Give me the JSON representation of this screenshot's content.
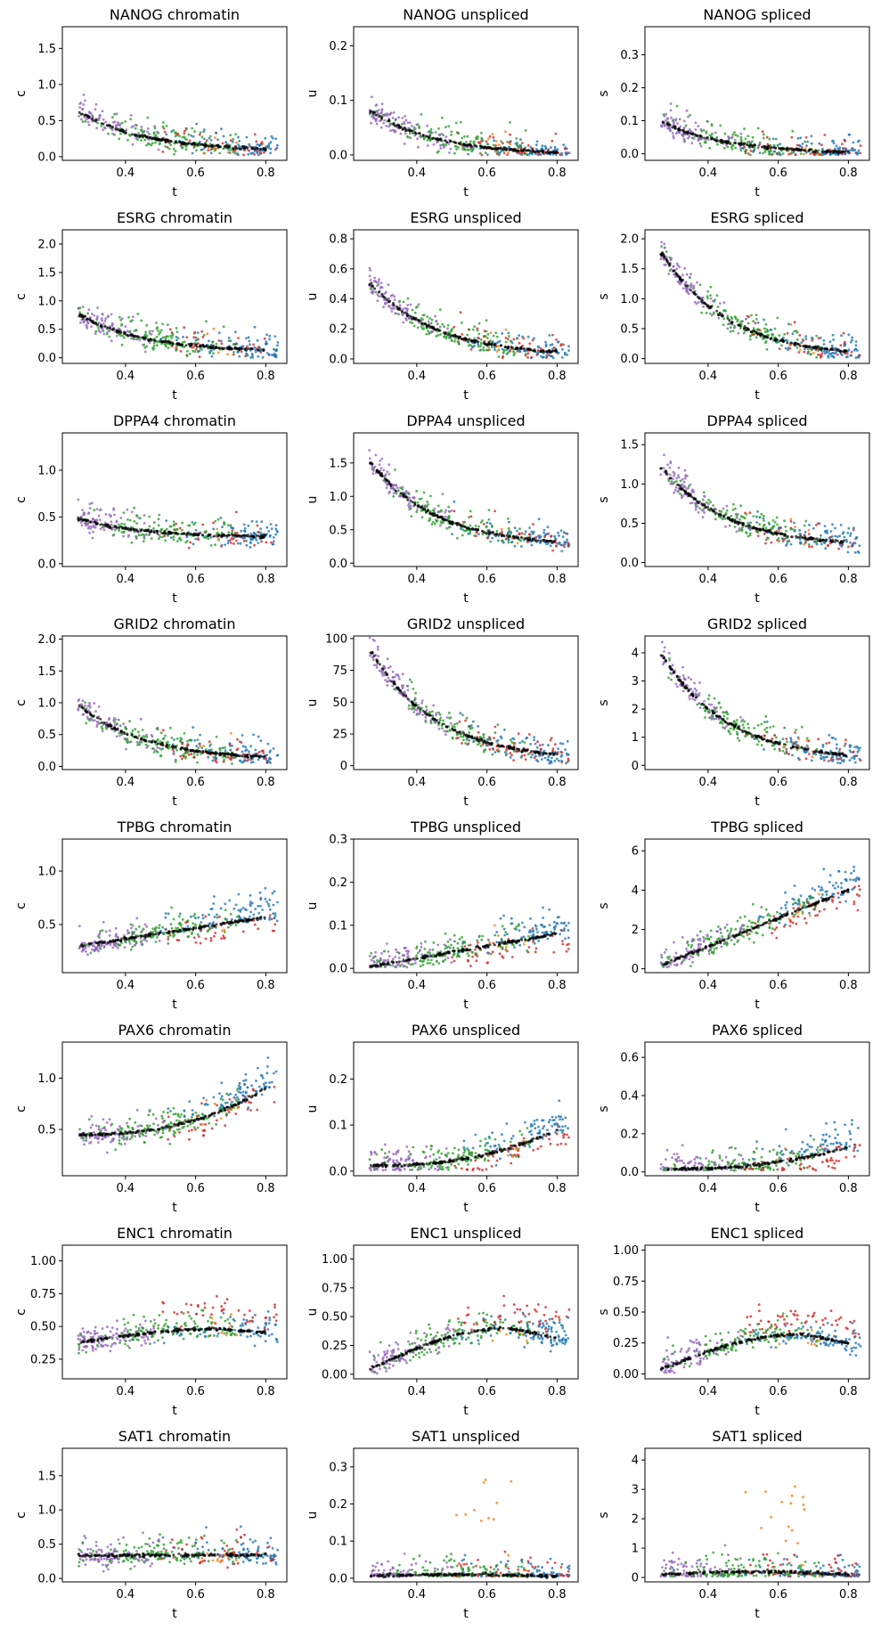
{
  "figure": {
    "x_label": "t",
    "x_range": [
      0.22,
      0.86
    ],
    "x_ticks": [
      0.4,
      0.6,
      0.8
    ],
    "column_kinds": [
      "chromatin",
      "unspliced",
      "spliced"
    ],
    "column_ylabels": [
      "c",
      "u",
      "s"
    ],
    "cluster_colors": {
      "purple": "#9467bd",
      "green": "#2ca02c",
      "orange": "#ff7f0e",
      "red": "#d62728",
      "blue": "#1f77b4",
      "fit": "#000000"
    }
  },
  "chart_data": [
    {
      "type": "scatter",
      "gene": "NANOG",
      "kind": "chromatin",
      "title": "NANOG chromatin",
      "xlabel": "t",
      "ylabel": "c",
      "ylim": [
        -0.05,
        1.8
      ],
      "yticks": [
        0.0,
        0.5,
        1.0,
        1.5
      ],
      "ytick_labels": [
        "0.0",
        "0.5",
        "1.0",
        "1.5"
      ],
      "trend": "decrease",
      "fit": [
        0.62,
        0.08
      ]
    },
    {
      "type": "scatter",
      "gene": "NANOG",
      "kind": "unspliced",
      "title": "NANOG unspliced",
      "xlabel": "t",
      "ylabel": "u",
      "ylim": [
        -0.01,
        0.235
      ],
      "yticks": [
        0.0,
        0.1,
        0.2
      ],
      "ytick_labels": [
        "0.0",
        "0.1",
        "0.2"
      ],
      "trend": "decrease",
      "fit": [
        0.08,
        0.0
      ]
    },
    {
      "type": "scatter",
      "gene": "NANOG",
      "kind": "spliced",
      "title": "NANOG spliced",
      "xlabel": "t",
      "ylabel": "s",
      "ylim": [
        -0.02,
        0.385
      ],
      "yticks": [
        0.0,
        0.1,
        0.2,
        0.3
      ],
      "ytick_labels": [
        "0.0",
        "0.1",
        "0.2",
        "0.3"
      ],
      "trend": "decrease",
      "fit": [
        0.095,
        0.0
      ]
    },
    {
      "type": "scatter",
      "gene": "ESRG",
      "kind": "chromatin",
      "title": "ESRG chromatin",
      "xlabel": "t",
      "ylabel": "c",
      "ylim": [
        -0.1,
        2.25
      ],
      "yticks": [
        0.0,
        0.5,
        1.0,
        1.5,
        2.0
      ],
      "ytick_labels": [
        "0.0",
        "0.5",
        "1.0",
        "1.5",
        "2.0"
      ],
      "trend": "decrease",
      "fit": [
        0.75,
        0.1
      ]
    },
    {
      "type": "scatter",
      "gene": "ESRG",
      "kind": "unspliced",
      "title": "ESRG unspliced",
      "xlabel": "t",
      "ylabel": "u",
      "ylim": [
        -0.03,
        0.86
      ],
      "yticks": [
        0.0,
        0.2,
        0.4,
        0.6,
        0.8
      ],
      "ytick_labels": [
        "0.0",
        "0.2",
        "0.4",
        "0.6",
        "0.8"
      ],
      "trend": "decrease",
      "fit": [
        0.5,
        0.02
      ]
    },
    {
      "type": "scatter",
      "gene": "ESRG",
      "kind": "spliced",
      "title": "ESRG spliced",
      "xlabel": "t",
      "ylabel": "s",
      "ylim": [
        -0.08,
        2.15
      ],
      "yticks": [
        0.0,
        0.5,
        1.0,
        1.5,
        2.0
      ],
      "ytick_labels": [
        "0.0",
        "0.5",
        "1.0",
        "1.5",
        "2.0"
      ],
      "trend": "decrease",
      "fit": [
        1.75,
        0.02
      ]
    },
    {
      "type": "scatter",
      "gene": "DPPA4",
      "kind": "chromatin",
      "title": "DPPA4 chromatin",
      "xlabel": "t",
      "ylabel": "c",
      "ylim": [
        -0.03,
        1.4
      ],
      "yticks": [
        0.0,
        0.5,
        1.0
      ],
      "ytick_labels": [
        "0.0",
        "0.5",
        "1.0"
      ],
      "trend": "flat-decrease",
      "fit": [
        0.48,
        0.28
      ]
    },
    {
      "type": "scatter",
      "gene": "DPPA4",
      "kind": "unspliced",
      "title": "DPPA4 unspliced",
      "xlabel": "t",
      "ylabel": "u",
      "ylim": [
        -0.05,
        1.95
      ],
      "yticks": [
        0.0,
        0.5,
        1.0,
        1.5
      ],
      "ytick_labels": [
        "0.0",
        "0.5",
        "1.0",
        "1.5"
      ],
      "trend": "decrease",
      "fit": [
        1.5,
        0.25
      ]
    },
    {
      "type": "scatter",
      "gene": "DPPA4",
      "kind": "spliced",
      "title": "DPPA4 spliced",
      "xlabel": "t",
      "ylabel": "s",
      "ylim": [
        -0.05,
        1.65
      ],
      "yticks": [
        0.0,
        0.5,
        1.0,
        1.5
      ],
      "ytick_labels": [
        "0.0",
        "0.5",
        "1.0",
        "1.5"
      ],
      "trend": "decrease",
      "fit": [
        1.2,
        0.2
      ]
    },
    {
      "type": "scatter",
      "gene": "GRID2",
      "kind": "chromatin",
      "title": "GRID2 chromatin",
      "xlabel": "t",
      "ylabel": "c",
      "ylim": [
        -0.05,
        2.05
      ],
      "yticks": [
        0.0,
        0.5,
        1.0,
        1.5,
        2.0
      ],
      "ytick_labels": [
        "0.0",
        "0.5",
        "1.0",
        "1.5",
        "2.0"
      ],
      "trend": "decrease",
      "fit": [
        0.95,
        0.1
      ]
    },
    {
      "type": "scatter",
      "gene": "GRID2",
      "kind": "unspliced",
      "title": "GRID2 unspliced",
      "xlabel": "t",
      "ylabel": "u",
      "ylim": [
        -3,
        102
      ],
      "yticks": [
        0,
        25,
        50,
        75,
        100
      ],
      "ytick_labels": [
        "0",
        "25",
        "50",
        "75",
        "100"
      ],
      "trend": "decrease",
      "fit": [
        90,
        4
      ]
    },
    {
      "type": "scatter",
      "gene": "GRID2",
      "kind": "spliced",
      "title": "GRID2 spliced",
      "xlabel": "t",
      "ylabel": "s",
      "ylim": [
        -0.15,
        4.6
      ],
      "yticks": [
        0,
        1,
        2,
        3,
        4
      ],
      "ytick_labels": [
        "0",
        "1",
        "2",
        "3",
        "4"
      ],
      "trend": "decrease",
      "fit": [
        3.9,
        0.15
      ]
    },
    {
      "type": "scatter",
      "gene": "TPBG",
      "kind": "chromatin",
      "title": "TPBG chromatin",
      "xlabel": "t",
      "ylabel": "c",
      "ylim": [
        0.05,
        1.3
      ],
      "yticks": [
        0.5,
        1.0
      ],
      "ytick_labels": [
        "0.5",
        "1.0"
      ],
      "trend": "increase",
      "fit": [
        0.3,
        0.57
      ]
    },
    {
      "type": "scatter",
      "gene": "TPBG",
      "kind": "unspliced",
      "title": "TPBG unspliced",
      "xlabel": "t",
      "ylabel": "u",
      "ylim": [
        -0.01,
        0.3
      ],
      "yticks": [
        0.0,
        0.1,
        0.2,
        0.3
      ],
      "ytick_labels": [
        "0.0",
        "0.1",
        "0.2",
        "0.3"
      ],
      "trend": "increase",
      "fit": [
        0.005,
        0.08
      ]
    },
    {
      "type": "scatter",
      "gene": "TPBG",
      "kind": "spliced",
      "title": "TPBG spliced",
      "xlabel": "t",
      "ylabel": "s",
      "ylim": [
        -0.2,
        6.6
      ],
      "yticks": [
        0,
        2,
        4,
        6
      ],
      "ytick_labels": [
        "0",
        "2",
        "4",
        "6"
      ],
      "trend": "increase",
      "fit": [
        0.2,
        4.0
      ]
    },
    {
      "type": "scatter",
      "gene": "PAX6",
      "kind": "chromatin",
      "title": "PAX6 chromatin",
      "xlabel": "t",
      "ylabel": "c",
      "ylim": [
        0.05,
        1.35
      ],
      "yticks": [
        0.5,
        1.0
      ],
      "ytick_labels": [
        "0.5",
        "1.0"
      ],
      "trend": "late-increase",
      "fit": [
        0.45,
        0.9
      ]
    },
    {
      "type": "scatter",
      "gene": "PAX6",
      "kind": "unspliced",
      "title": "PAX6 unspliced",
      "xlabel": "t",
      "ylabel": "u",
      "ylim": [
        -0.01,
        0.28
      ],
      "yticks": [
        0.0,
        0.1,
        0.2
      ],
      "ytick_labels": [
        "0.0",
        "0.1",
        "0.2"
      ],
      "trend": "late-increase",
      "fit": [
        0.012,
        0.09
      ]
    },
    {
      "type": "scatter",
      "gene": "PAX6",
      "kind": "spliced",
      "title": "PAX6 spliced",
      "xlabel": "t",
      "ylabel": "s",
      "ylim": [
        -0.02,
        0.68
      ],
      "yticks": [
        0.0,
        0.2,
        0.4,
        0.6
      ],
      "ytick_labels": [
        "0.0",
        "0.2",
        "0.4",
        "0.6"
      ],
      "trend": "late-increase",
      "fit": [
        0.015,
        0.13
      ]
    },
    {
      "type": "scatter",
      "gene": "ENC1",
      "kind": "chromatin",
      "title": "ENC1 chromatin",
      "xlabel": "t",
      "ylabel": "c",
      "ylim": [
        0.1,
        1.12
      ],
      "yticks": [
        0.25,
        0.5,
        0.75,
        1.0
      ],
      "ytick_labels": [
        "0.25",
        "0.50",
        "0.75",
        "1.00"
      ],
      "trend": "rise-fall",
      "fit": [
        0.38,
        0.48
      ]
    },
    {
      "type": "scatter",
      "gene": "ENC1",
      "kind": "unspliced",
      "title": "ENC1 unspliced",
      "xlabel": "t",
      "ylabel": "u",
      "ylim": [
        -0.04,
        1.12
      ],
      "yticks": [
        0.0,
        0.25,
        0.5,
        0.75,
        1.0
      ],
      "ytick_labels": [
        "0.00",
        "0.25",
        "0.50",
        "0.75",
        "1.00"
      ],
      "trend": "rise-fall",
      "fit": [
        0.05,
        0.4
      ]
    },
    {
      "type": "scatter",
      "gene": "ENC1",
      "kind": "spliced",
      "title": "ENC1 spliced",
      "xlabel": "t",
      "ylabel": "s",
      "ylim": [
        -0.04,
        1.04
      ],
      "yticks": [
        0.0,
        0.25,
        0.5,
        0.75,
        1.0
      ],
      "ytick_labels": [
        "0.00",
        "0.25",
        "0.50",
        "0.75",
        "1.00"
      ],
      "trend": "rise-fall",
      "fit": [
        0.04,
        0.32
      ]
    },
    {
      "type": "scatter",
      "gene": "SAT1",
      "kind": "chromatin",
      "title": "SAT1 chromatin",
      "xlabel": "t",
      "ylabel": "c",
      "ylim": [
        -0.05,
        1.9
      ],
      "yticks": [
        0.0,
        0.5,
        1.0,
        1.5
      ],
      "ytick_labels": [
        "0.0",
        "0.5",
        "1.0",
        "1.5"
      ],
      "trend": "flat",
      "fit": [
        0.33,
        0.35
      ]
    },
    {
      "type": "scatter",
      "gene": "SAT1",
      "kind": "unspliced",
      "title": "SAT1 unspliced",
      "xlabel": "t",
      "ylabel": "u",
      "ylim": [
        -0.01,
        0.35
      ],
      "yticks": [
        0.0,
        0.1,
        0.2,
        0.3
      ],
      "ytick_labels": [
        "0.0",
        "0.1",
        "0.2",
        "0.3"
      ],
      "trend": "orange-burst",
      "fit": [
        0.005,
        0.01
      ]
    },
    {
      "type": "scatter",
      "gene": "SAT1",
      "kind": "spliced",
      "title": "SAT1 spliced",
      "xlabel": "t",
      "ylabel": "s",
      "ylim": [
        -0.15,
        4.4
      ],
      "yticks": [
        0,
        1,
        2,
        3,
        4
      ],
      "ytick_labels": [
        "0",
        "1",
        "2",
        "3",
        "4"
      ],
      "trend": "orange-burst",
      "fit": [
        0.1,
        0.2
      ]
    }
  ]
}
